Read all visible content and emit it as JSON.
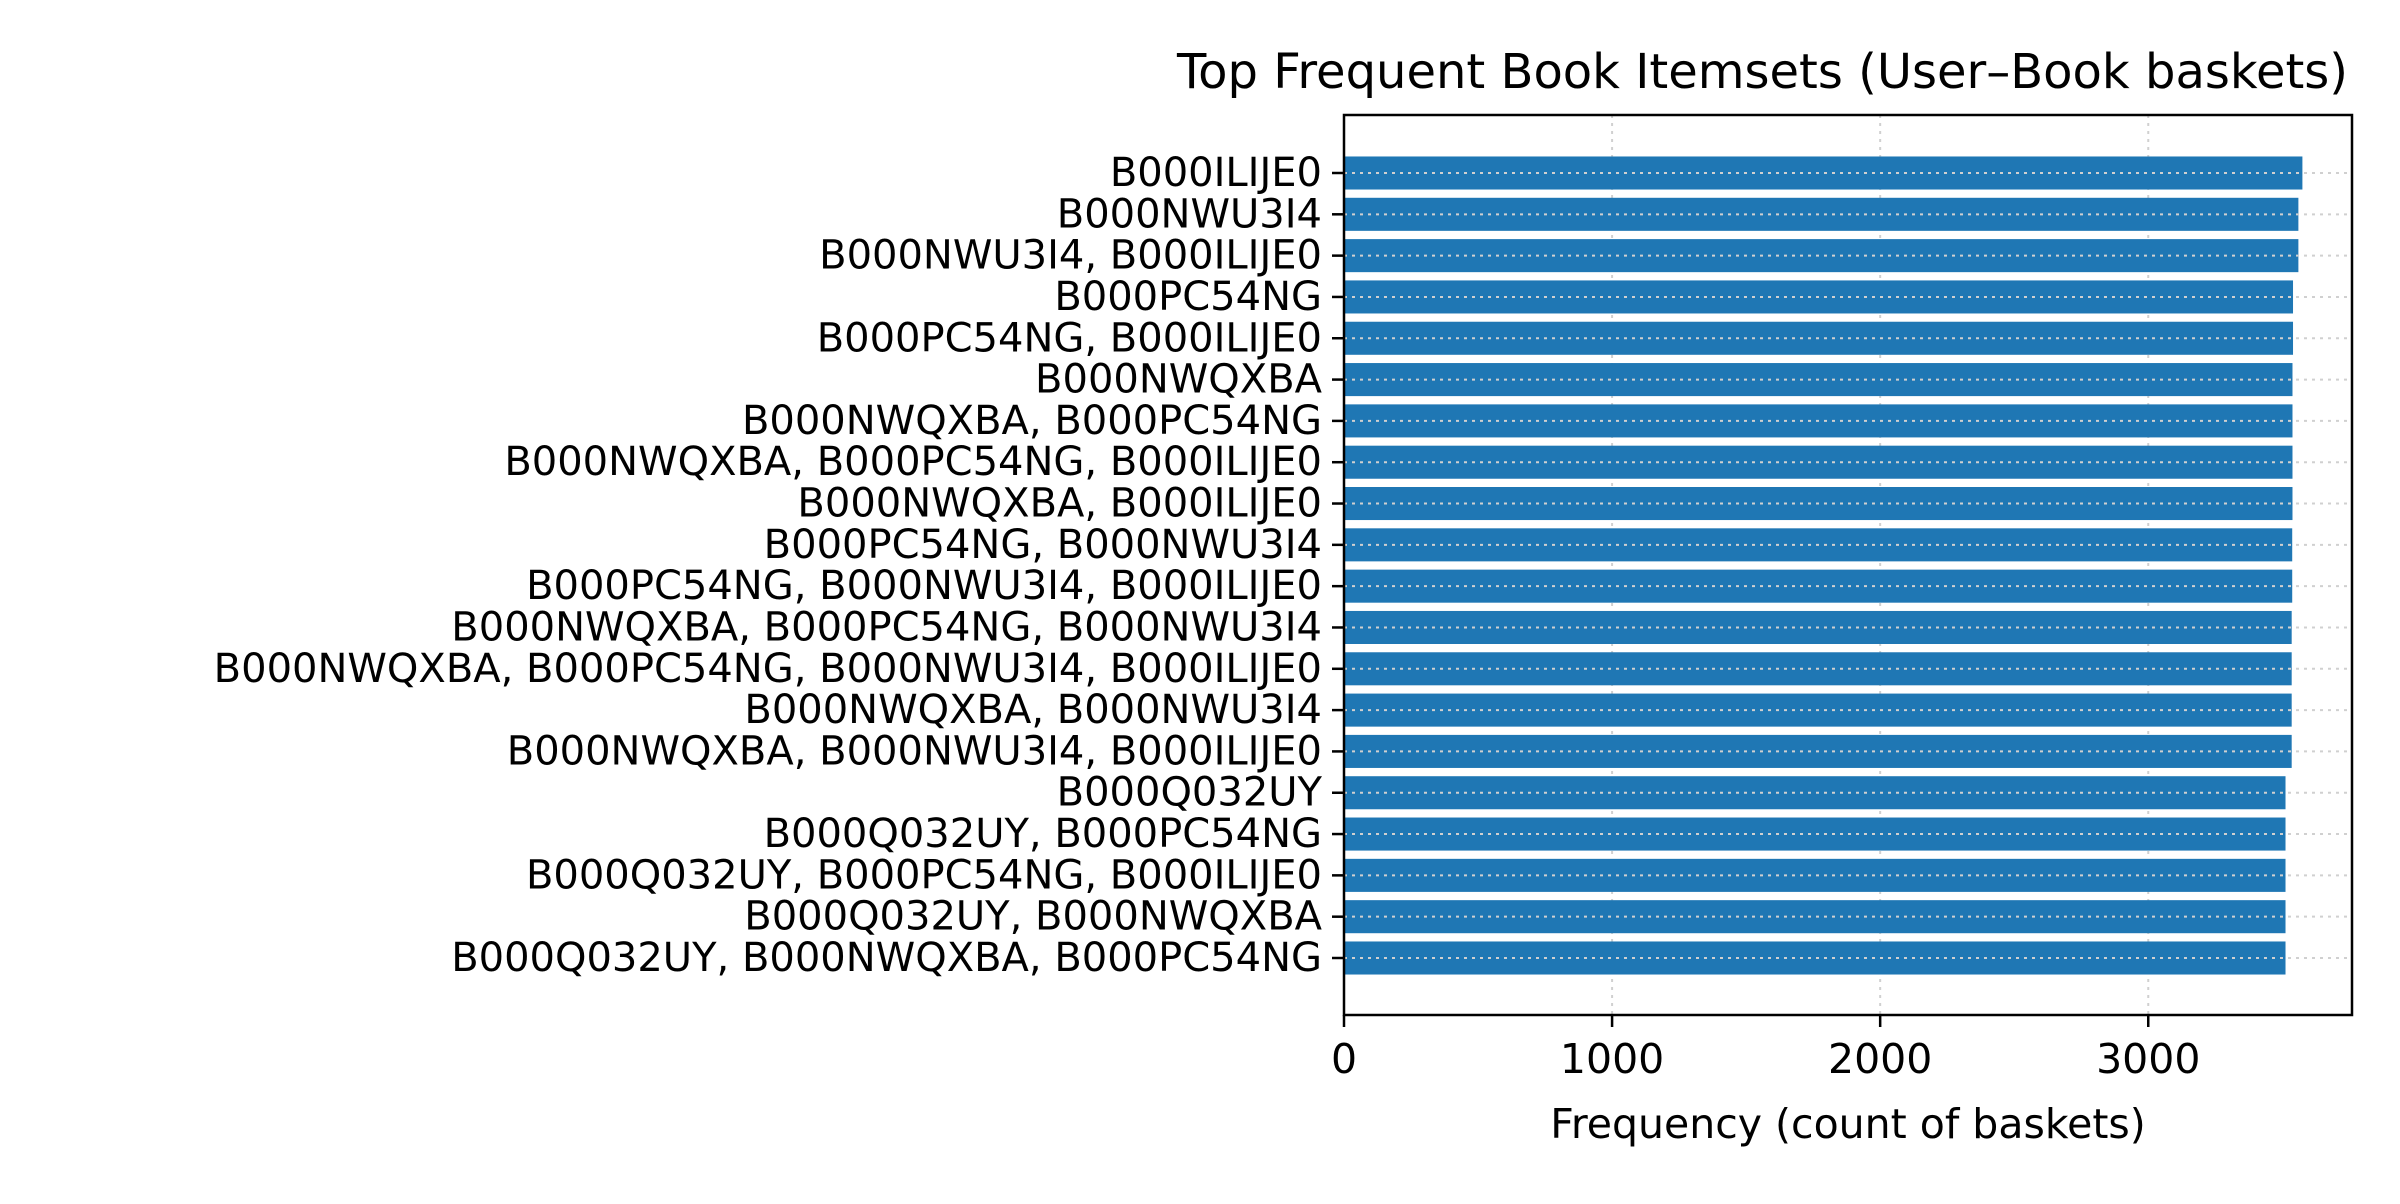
{
  "chart_data": {
    "type": "bar",
    "orientation": "horizontal",
    "title": "Top Frequent Book Itemsets (User–Book baskets)",
    "xlabel": "Frequency (count of baskets)",
    "ylabel": "",
    "xlim": [
      0,
      3760
    ],
    "xticks": [
      0,
      1000,
      2000,
      3000
    ],
    "grid": "x-dotted",
    "bar_color": "#1f77b4",
    "categories": [
      "B000ILIJE0",
      "B000NWU3I4",
      "B000NWU3I4, B000ILIJE0",
      "B000PC54NG",
      "B000PC54NG, B000ILIJE0",
      "B000NWQXBA",
      "B000NWQXBA, B000PC54NG",
      "B000NWQXBA, B000PC54NG, B000ILIJE0",
      "B000NWQXBA, B000ILIJE0",
      "B000PC54NG, B000NWU3I4",
      "B000PC54NG, B000NWU3I4, B000ILIJE0",
      "B000NWQXBA, B000PC54NG, B000NWU3I4",
      "B000NWQXBA, B000PC54NG, B000NWU3I4, B000ILIJE0",
      "B000NWQXBA, B000NWU3I4",
      "B000NWQXBA, B000NWU3I4, B000ILIJE0",
      "B000Q032UY",
      "B000Q032UY, B000PC54NG",
      "B000Q032UY, B000PC54NG, B000ILIJE0",
      "B000Q032UY, B000NWQXBA",
      "B000Q032UY, B000NWQXBA, B000PC54NG"
    ],
    "values": [
      3575,
      3560,
      3560,
      3540,
      3540,
      3538,
      3538,
      3538,
      3538,
      3537,
      3537,
      3535,
      3535,
      3535,
      3535,
      3512,
      3512,
      3512,
      3512,
      3512
    ]
  }
}
